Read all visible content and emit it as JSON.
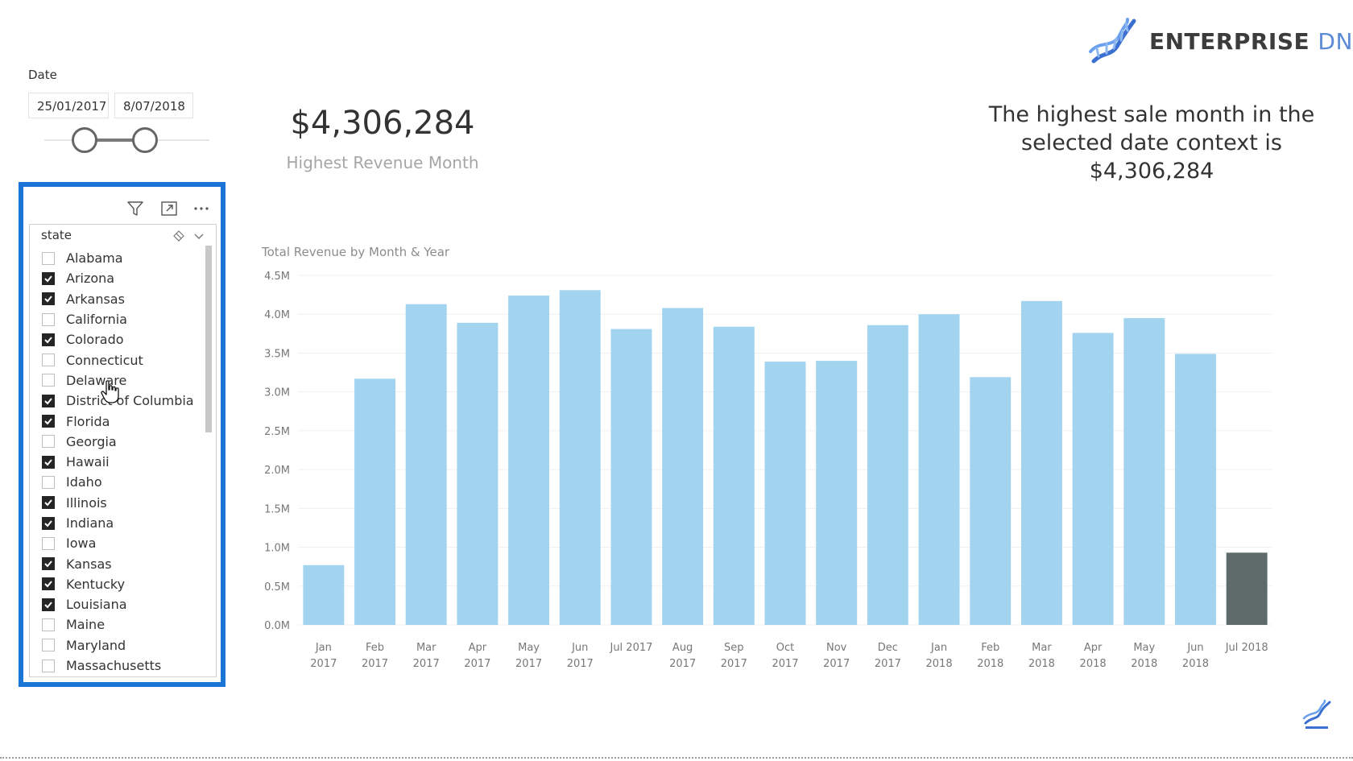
{
  "date_slicer": {
    "title": "Date",
    "start": "25/01/2017",
    "end": "8/07/2018"
  },
  "kpi": {
    "value": "$4,306,284",
    "label": "Highest Revenue Month"
  },
  "logo": {
    "word1": "ENTERPRISE",
    "word2": "DNA",
    "colors": {
      "primary": "#3c3c3c",
      "accent": "#5b8ad6"
    }
  },
  "summary": {
    "line1": "The highest sale month in the",
    "line2": "selected date context is",
    "line3": "$4,306,284"
  },
  "state_slicer": {
    "header": "state",
    "highlight_color": "#1b75d6",
    "items": [
      {
        "label": "Alabama",
        "checked": false
      },
      {
        "label": "Arizona",
        "checked": true
      },
      {
        "label": "Arkansas",
        "checked": true
      },
      {
        "label": "California",
        "checked": false
      },
      {
        "label": "Colorado",
        "checked": true
      },
      {
        "label": "Connecticut",
        "checked": false
      },
      {
        "label": "Delaware",
        "checked": false
      },
      {
        "label": "District of Columbia",
        "checked": true
      },
      {
        "label": "Florida",
        "checked": true
      },
      {
        "label": "Georgia",
        "checked": false
      },
      {
        "label": "Hawaii",
        "checked": true
      },
      {
        "label": "Idaho",
        "checked": false
      },
      {
        "label": "Illinois",
        "checked": true
      },
      {
        "label": "Indiana",
        "checked": true
      },
      {
        "label": "Iowa",
        "checked": false
      },
      {
        "label": "Kansas",
        "checked": true
      },
      {
        "label": "Kentucky",
        "checked": true
      },
      {
        "label": "Louisiana",
        "checked": true
      },
      {
        "label": "Maine",
        "checked": false
      },
      {
        "label": "Maryland",
        "checked": false
      },
      {
        "label": "Massachusetts",
        "checked": false
      }
    ]
  },
  "chart_data": {
    "type": "bar",
    "title": "Total Revenue by Month & Year",
    "categories": [
      "Jan 2017",
      "Feb 2017",
      "Mar 2017",
      "Apr 2017",
      "May 2017",
      "Jun 2017",
      "Jul 2017",
      "Aug 2017",
      "Sep 2017",
      "Oct 2017",
      "Nov 2017",
      "Dec 2017",
      "Jan 2018",
      "Feb 2018",
      "Mar 2018",
      "Apr 2018",
      "May 2018",
      "Jun 2018",
      "Jul 2018"
    ],
    "values": [
      0.77,
      3.17,
      4.13,
      3.89,
      4.24,
      4.31,
      3.81,
      4.08,
      3.84,
      3.39,
      3.4,
      3.86,
      4.0,
      3.19,
      4.17,
      3.76,
      3.95,
      3.49,
      0.93
    ],
    "unit": "M",
    "ylim": [
      0,
      4.5
    ],
    "yticks": [
      "0.0M",
      "0.5M",
      "1.0M",
      "1.5M",
      "2.0M",
      "2.5M",
      "3.0M",
      "3.5M",
      "4.0M",
      "4.5M"
    ],
    "colors": {
      "bar": "#a3d4ef",
      "highlight": "#5f6a6a"
    },
    "highlight_index": 18,
    "grid": true
  }
}
